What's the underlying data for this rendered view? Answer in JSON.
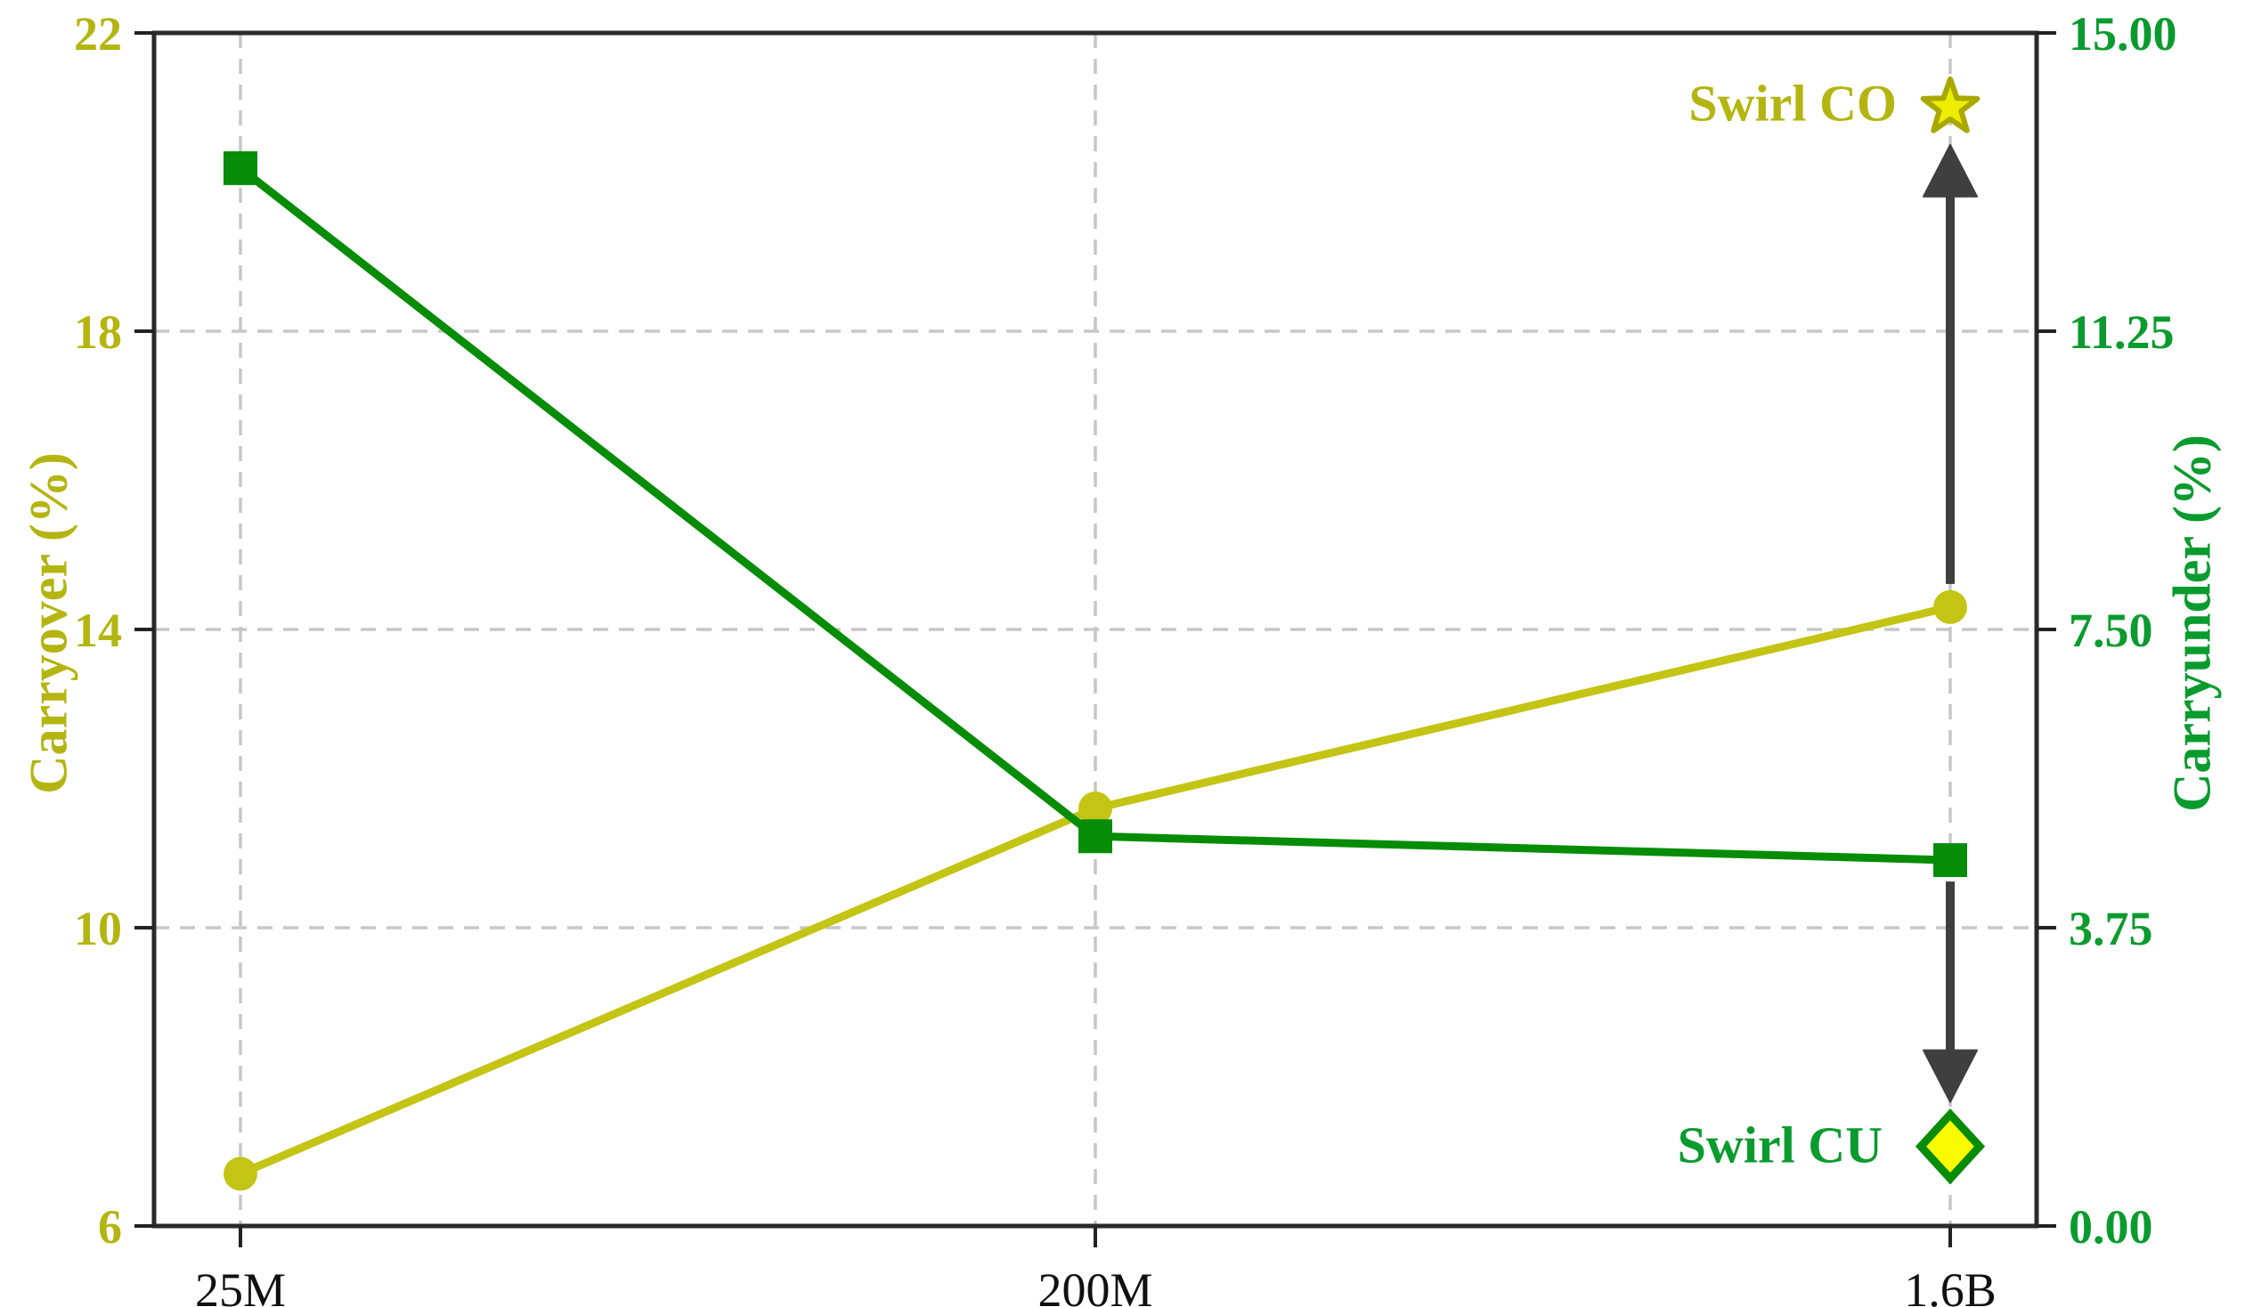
{
  "chart_data": {
    "type": "line",
    "title": "",
    "legend": "none",
    "grid": {
      "visible": true,
      "style": "dashed",
      "color": "#c7c7c7",
      "vertical": true,
      "horizontal": true
    },
    "frame_color": "#2a2a2a",
    "x": {
      "categories": [
        "25M",
        "200M",
        "1.6B"
      ],
      "tick_color": "#111111"
    },
    "left_axis": {
      "label": "Carryover (%)",
      "color": "#b4b511",
      "ticks": [
        "22",
        "18",
        "14",
        "10",
        "6"
      ],
      "range": [
        6,
        22
      ]
    },
    "right_axis": {
      "label": "Carryunder (%)",
      "color": "#0a9b2e",
      "ticks": [
        "15.00",
        "11.25",
        "7.50",
        "3.75",
        "0.00"
      ],
      "range": [
        0,
        15
      ]
    },
    "series": [
      {
        "name": "Carryover",
        "axis": "left",
        "marker": "circle",
        "color": "#c3c414",
        "values": [
          6.7,
          11.6,
          14.3
        ]
      },
      {
        "name": "Carryunder",
        "axis": "right",
        "marker": "square",
        "color": "#078c07",
        "values": [
          13.3,
          4.9,
          4.6
        ]
      }
    ],
    "annotations": [
      {
        "label": "Swirl CO",
        "category": "1.6B",
        "axis": "left",
        "value": 21.0,
        "marker": "star",
        "marker_fill": "#eded00",
        "marker_edge": "#a8a800",
        "label_color": "#b4b511"
      },
      {
        "label": "Swirl CU",
        "category": "1.6B",
        "axis": "right",
        "value": 1.0,
        "marker": "diamond",
        "marker_fill": "#fbfb00",
        "marker_edge": "#078c07",
        "label_color": "#0a9b2e"
      }
    ],
    "arrows": [
      {
        "direction": "up",
        "category": "1.6B",
        "from_series": "Carryover",
        "to": "Swirl CO",
        "color": "#3f3f3f"
      },
      {
        "direction": "down",
        "category": "1.6B",
        "from_series": "Carryunder",
        "to": "Swirl CU",
        "color": "#3f3f3f"
      }
    ]
  }
}
